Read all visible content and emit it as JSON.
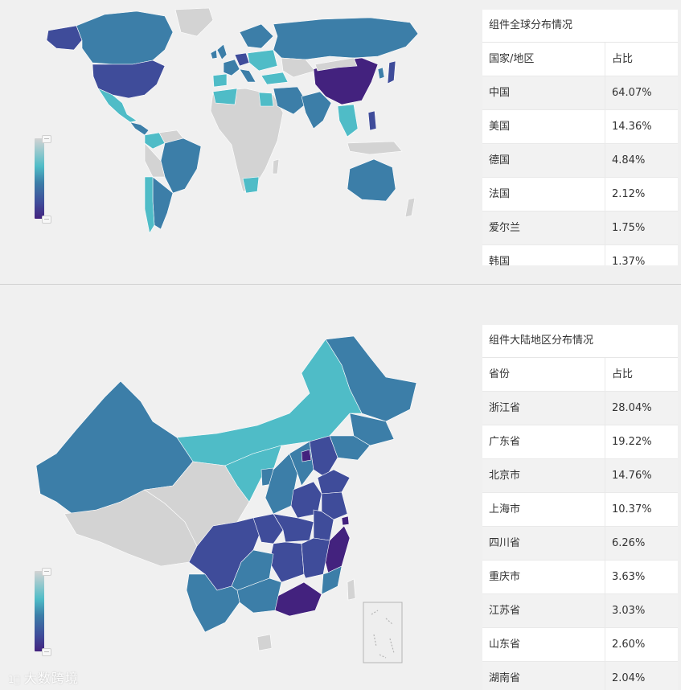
{
  "colors": {
    "min": "#d3d3d3",
    "low": "#4fbcc7",
    "mid": "#3c7ea8",
    "high": "#3f4c9a",
    "max": "#43227e"
  },
  "world": {
    "table_title": "组件全球分布情况",
    "col_headers": [
      "国家/地区",
      "占比"
    ],
    "rows": [
      {
        "name": "中国",
        "value": "64.07%"
      },
      {
        "name": "美国",
        "value": "14.36%"
      },
      {
        "name": "德国",
        "value": "4.84%"
      },
      {
        "name": "法国",
        "value": "2.12%"
      },
      {
        "name": "爱尔兰",
        "value": "1.75%"
      },
      {
        "name": "韩国",
        "value": "1.37%"
      }
    ]
  },
  "china": {
    "table_title": "组件大陆地区分布情况",
    "col_headers": [
      "省份",
      "占比"
    ],
    "rows": [
      {
        "name": "浙江省",
        "value": "28.04%"
      },
      {
        "name": "广东省",
        "value": "19.22%"
      },
      {
        "name": "北京市",
        "value": "14.76%"
      },
      {
        "name": "上海市",
        "value": "10.37%"
      },
      {
        "name": "四川省",
        "value": "6.26%"
      },
      {
        "name": "重庆市",
        "value": "3.63%"
      },
      {
        "name": "江苏省",
        "value": "3.03%"
      },
      {
        "name": "山东省",
        "value": "2.60%"
      },
      {
        "name": "湖南省",
        "value": "2.04%"
      }
    ]
  },
  "chart_data": [
    {
      "type": "table",
      "title": "组件全球分布情况",
      "columns": [
        "国家/地区",
        "占比"
      ],
      "categories": [
        "中国",
        "美国",
        "德国",
        "法国",
        "爱尔兰",
        "韩国"
      ],
      "values": [
        64.07,
        14.36,
        4.84,
        2.12,
        1.75,
        1.37
      ],
      "unit": "%"
    },
    {
      "type": "table",
      "title": "组件大陆地区分布情况",
      "columns": [
        "省份",
        "占比"
      ],
      "categories": [
        "浙江省",
        "广东省",
        "北京市",
        "上海市",
        "四川省",
        "重庆市",
        "江苏省",
        "山东省",
        "湖南省"
      ],
      "values": [
        28.04,
        19.22,
        14.76,
        10.37,
        6.26,
        3.63,
        3.03,
        2.6,
        2.04
      ],
      "unit": "%"
    }
  ],
  "watermark": {
    "logo": "1⃝",
    "text": "大数跨境"
  }
}
